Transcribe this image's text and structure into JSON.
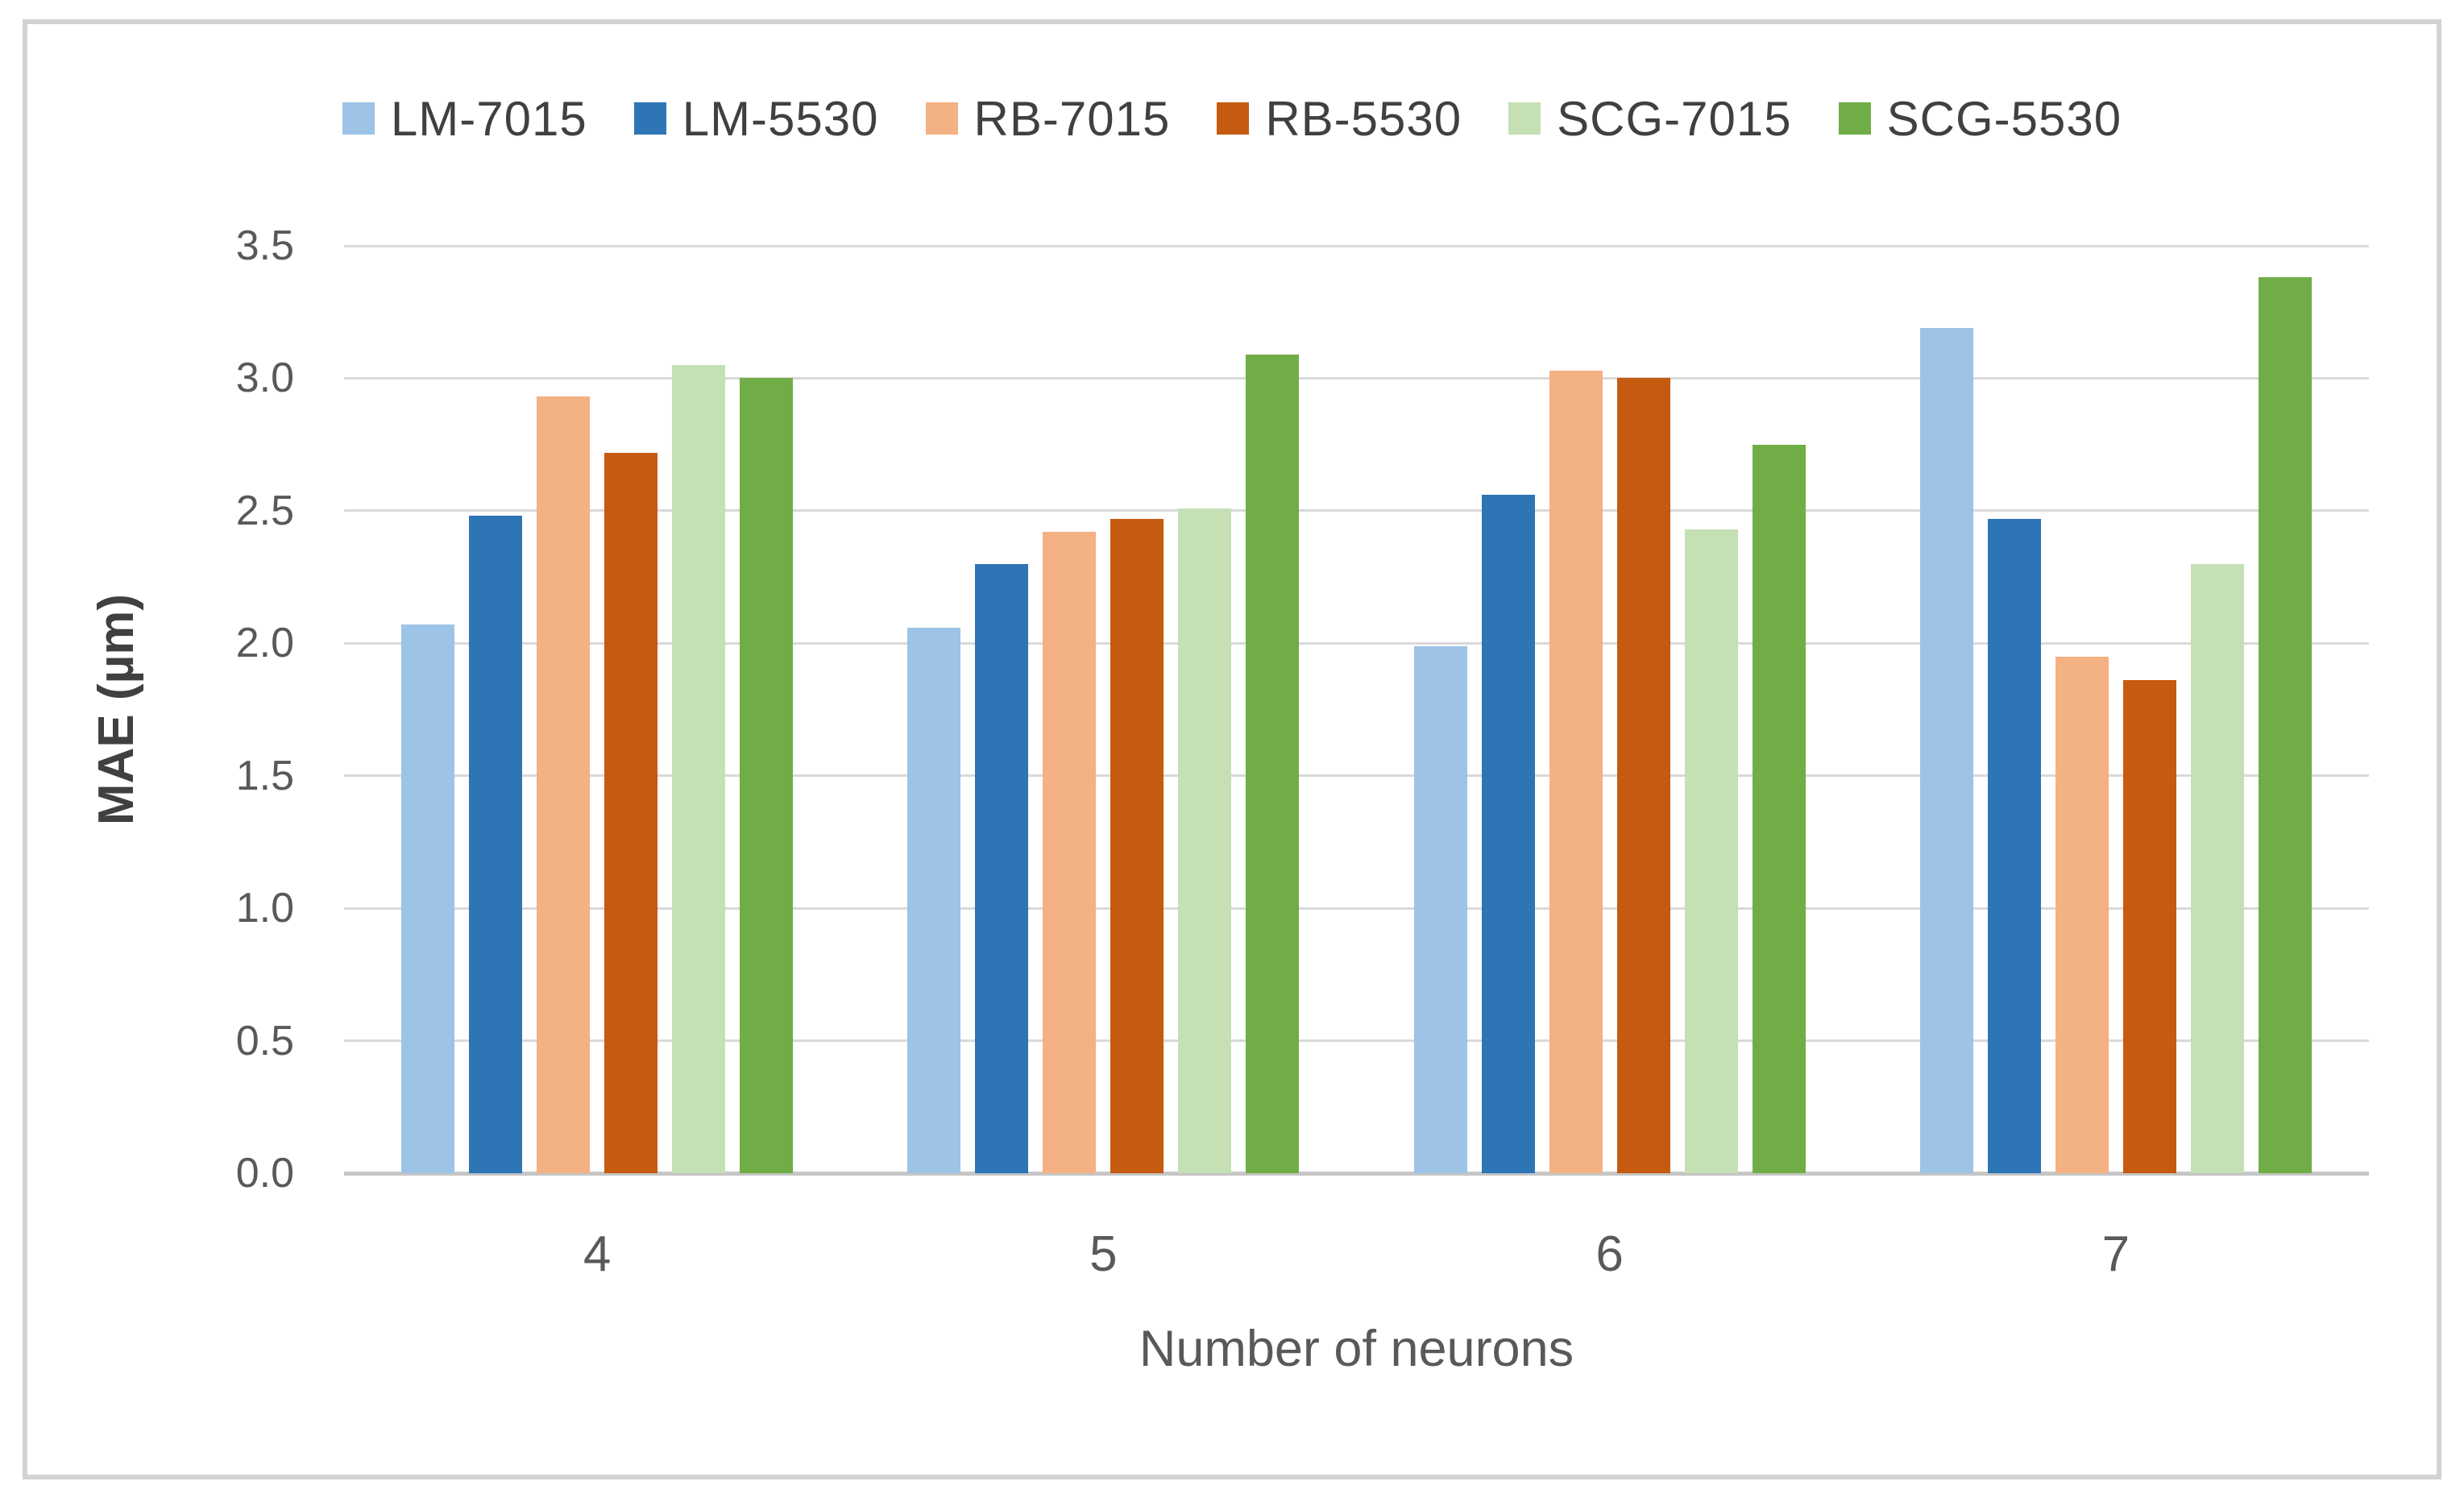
{
  "chart_data": {
    "type": "bar",
    "title": "",
    "categories": [
      "4",
      "5",
      "6",
      "7"
    ],
    "series": [
      {
        "name": "LM-7015",
        "color": "#9DC3E6",
        "values": [
          2.07,
          2.06,
          1.99,
          3.19
        ]
      },
      {
        "name": "LM-5530",
        "color": "#2E75B6",
        "values": [
          2.48,
          2.3,
          2.56,
          2.47
        ]
      },
      {
        "name": "RB-7015",
        "color": "#F4B183",
        "values": [
          2.93,
          2.42,
          3.03,
          1.95
        ]
      },
      {
        "name": "RB-5530",
        "color": "#C55A11",
        "values": [
          2.72,
          2.47,
          3.0,
          1.86
        ]
      },
      {
        "name": "SCG-7015",
        "color": "#C5E0B4",
        "values": [
          3.05,
          2.51,
          2.43,
          2.3
        ]
      },
      {
        "name": "SCG-5530",
        "color": "#70AD47",
        "values": [
          3.0,
          3.09,
          2.75,
          3.38
        ]
      }
    ],
    "xlabel": "Number of neurons",
    "ylabel": "MAE (µm)",
    "ylim": [
      0,
      3.5
    ],
    "ytick_step": 0.5,
    "ytick_labels": [
      "3.5",
      "3.0",
      "2.5",
      "2.0",
      "1.5",
      "1.0",
      "0.5",
      "0.0"
    ],
    "grid": "horizontal",
    "legend_position": "top"
  },
  "colors": {
    "gridline": "#D9D9D9",
    "axis_line": "#C6C6C6",
    "tick_label": "#595959",
    "axis_title": "#595959",
    "legend_text": "#404040",
    "frame_border": "#D2D2D2",
    "background": "#FFFFFF"
  }
}
